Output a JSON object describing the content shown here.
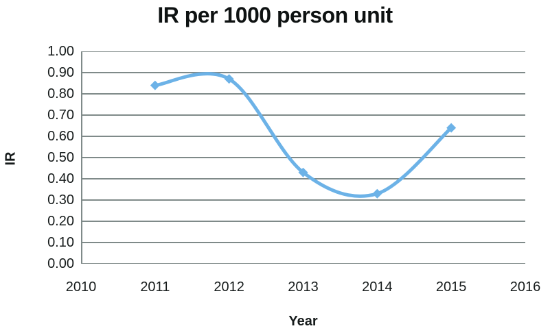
{
  "page": {
    "background": "#FFFFFF"
  },
  "chart_data": {
    "type": "line",
    "title": "IR per 1000 person unit",
    "xlabel": "Year",
    "ylabel": "IR",
    "series": [
      {
        "name": "IR",
        "x": [
          2011,
          2012,
          2013,
          2014,
          2015
        ],
        "values": [
          0.84,
          0.87,
          0.43,
          0.33,
          0.64
        ]
      }
    ],
    "xlim": [
      2010,
      2016
    ],
    "ylim": [
      0.0,
      1.0
    ],
    "x_ticks": [
      "2010",
      "2011",
      "2012",
      "2013",
      "2014",
      "2015",
      "2016"
    ],
    "x_tick_values": [
      2010,
      2011,
      2012,
      2013,
      2014,
      2015,
      2016
    ],
    "y_ticks": [
      "0.00",
      "0.10",
      "0.20",
      "0.30",
      "0.40",
      "0.50",
      "0.60",
      "0.70",
      "0.80",
      "0.90",
      "1.00"
    ],
    "y_tick_values": [
      0.0,
      0.1,
      0.2,
      0.3,
      0.4,
      0.5,
      0.6,
      0.7,
      0.8,
      0.9,
      1.0
    ],
    "grid": "horizontal",
    "legend": "none",
    "smooth": true,
    "marker": "diamond",
    "colors": {
      "line": "#6CB2E7",
      "grid": "#7F8A89",
      "axis": "#7F8A89",
      "text": "#161B1B",
      "title": "#0E1212",
      "background": "#FFFFFF"
    }
  }
}
